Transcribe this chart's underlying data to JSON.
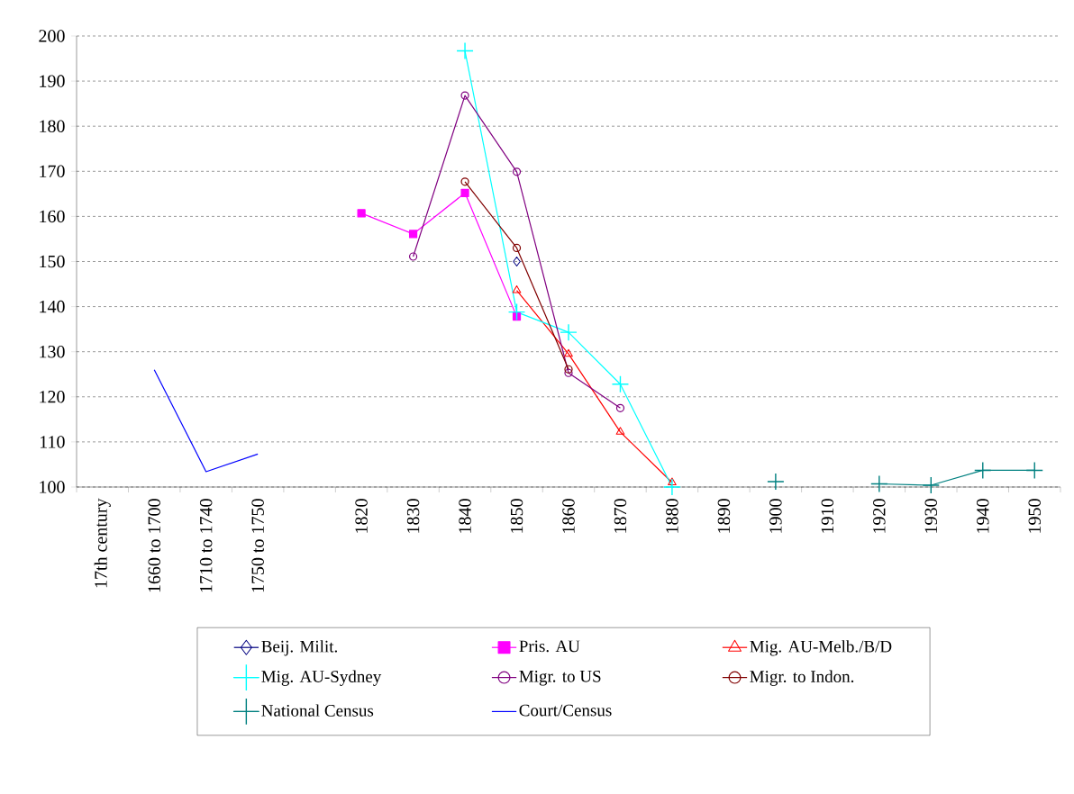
{
  "chart_data": {
    "type": "line",
    "categories": [
      "17th century",
      "1660 to 1700",
      "1710 to 1740",
      "1750 to 1750",
      null,
      "1820",
      "1830",
      "1840",
      "1850",
      "1860",
      "1870",
      "1880",
      "1890",
      "1900",
      "1910",
      "1920",
      "1930",
      "1940",
      "1950"
    ],
    "series": [
      {
        "name": "Beij. Milit.",
        "color": "#000080",
        "marker": "diamond",
        "values": [
          null,
          null,
          null,
          null,
          null,
          null,
          null,
          null,
          150,
          null,
          null,
          null,
          null,
          null,
          null,
          null,
          null,
          null,
          null
        ]
      },
      {
        "name": "Pris. AU",
        "color": "#ff00ff",
        "marker": "square",
        "values": [
          null,
          null,
          null,
          null,
          null,
          160.7,
          156.1,
          165.2,
          137.8,
          null,
          null,
          null,
          null,
          null,
          null,
          null,
          null,
          null,
          null
        ]
      },
      {
        "name": "Mig. AU-Melb./B/D",
        "color": "#ff0000",
        "marker": "triangle",
        "values": [
          null,
          null,
          null,
          null,
          null,
          null,
          null,
          null,
          143.6,
          129.5,
          112.2,
          101,
          null,
          null,
          null,
          null,
          null,
          null,
          null
        ]
      },
      {
        "name": "Mig. AU-Sydney",
        "color": "#00ffff",
        "marker": "cross",
        "values": [
          null,
          null,
          null,
          null,
          null,
          null,
          null,
          196.7,
          138.8,
          134.3,
          122.8,
          100,
          null,
          null,
          null,
          null,
          null,
          null,
          null
        ]
      },
      {
        "name": "Migr. to US",
        "color": "#800080",
        "marker": "circle",
        "values": [
          null,
          null,
          null,
          null,
          null,
          null,
          151.1,
          186.8,
          169.9,
          125.3,
          117.5,
          null,
          null,
          null,
          null,
          null,
          null,
          null,
          null
        ]
      },
      {
        "name": "Migr. to Indon.",
        "color": "#800000",
        "marker": "circle",
        "values": [
          null,
          null,
          null,
          null,
          null,
          null,
          null,
          167.7,
          153,
          126.1,
          null,
          null,
          null,
          null,
          null,
          null,
          null,
          null,
          null
        ]
      },
      {
        "name": "National Census",
        "color": "#008080",
        "marker": "cross",
        "values": [
          null,
          null,
          null,
          null,
          null,
          null,
          null,
          null,
          null,
          null,
          null,
          null,
          null,
          101.2,
          null,
          100.7,
          100.4,
          103.7,
          103.7
        ]
      },
      {
        "name": "Court/Census",
        "color": "#0000ff",
        "marker": "none",
        "values": [
          null,
          126,
          103.4,
          107.3,
          null,
          null,
          null,
          null,
          null,
          null,
          null,
          null,
          null,
          null,
          null,
          null,
          null,
          null,
          null
        ]
      }
    ],
    "ylim": [
      100,
      200
    ],
    "yticks": [
      100,
      110,
      120,
      130,
      140,
      150,
      160,
      170,
      180,
      190,
      200
    ],
    "grid": "y",
    "legend": "bottom",
    "line_style": "solid"
  }
}
